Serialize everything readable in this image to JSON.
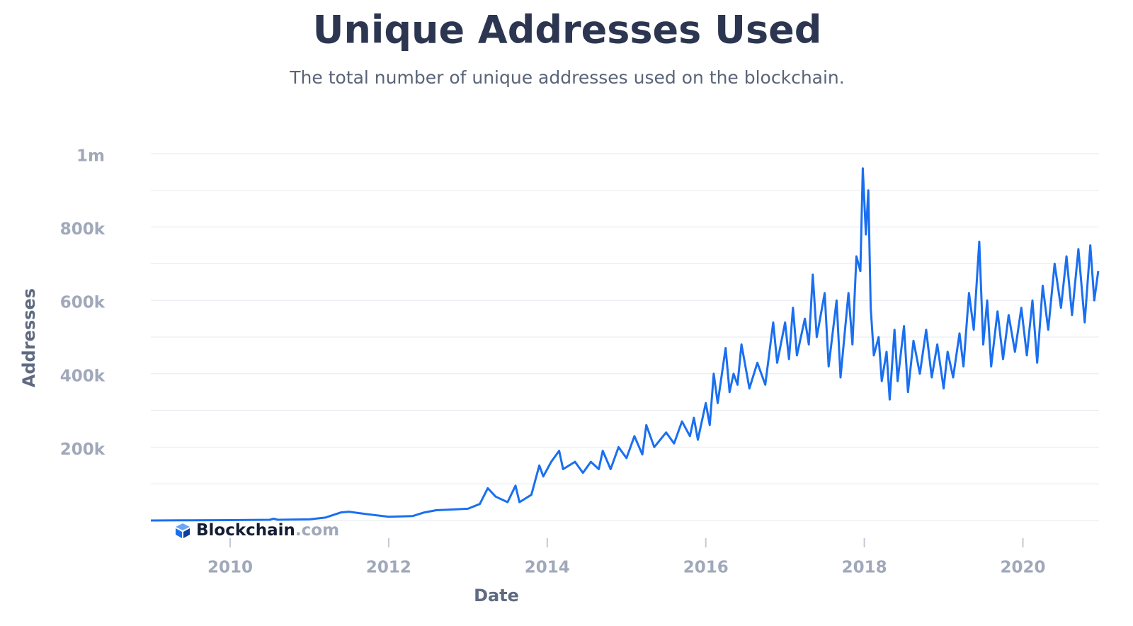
{
  "chart_data": {
    "type": "line",
    "title": "Unique Addresses Used",
    "subtitle": "The total number of unique addresses used on the blockchain.",
    "x_label": "Date",
    "y_label": "Addresses",
    "logo": "Blockchain",
    "logo_suffix": ".com",
    "xlim": [
      2009,
      2020.96
    ],
    "xticks": [
      2010,
      2012,
      2014,
      2016,
      2018,
      2020
    ],
    "ylim": [
      0,
      1000000
    ],
    "yticks": [
      {
        "value": 200000,
        "label": "200k"
      },
      {
        "value": 400000,
        "label": "400k"
      },
      {
        "value": 600000,
        "label": "600k"
      },
      {
        "value": 800000,
        "label": "800k"
      },
      {
        "value": 1000000,
        "label": "1m"
      }
    ],
    "ygrid": [
      0,
      100000,
      200000,
      300000,
      400000,
      500000,
      600000,
      700000,
      800000,
      900000,
      1000000
    ],
    "grid": true,
    "x": [
      2009.0,
      2009.5,
      2010.0,
      2010.5,
      2010.55,
      2010.6,
      2011.0,
      2011.2,
      2011.4,
      2011.5,
      2011.7,
      2012.0,
      2012.3,
      2012.45,
      2012.6,
      2012.8,
      2013.0,
      2013.15,
      2013.25,
      2013.35,
      2013.5,
      2013.6,
      2013.65,
      2013.8,
      2013.9,
      2013.95,
      2014.05,
      2014.15,
      2014.2,
      2014.35,
      2014.45,
      2014.55,
      2014.65,
      2014.7,
      2014.8,
      2014.9,
      2015.0,
      2015.1,
      2015.2,
      2015.25,
      2015.35,
      2015.5,
      2015.6,
      2015.7,
      2015.8,
      2015.85,
      2015.9,
      2016.0,
      2016.05,
      2016.1,
      2016.15,
      2016.25,
      2016.3,
      2016.35,
      2016.4,
      2016.45,
      2016.55,
      2016.65,
      2016.75,
      2016.85,
      2016.9,
      2017.0,
      2017.05,
      2017.1,
      2017.15,
      2017.25,
      2017.3,
      2017.35,
      2017.4,
      2017.5,
      2017.55,
      2017.65,
      2017.7,
      2017.8,
      2017.85,
      2017.9,
      2017.95,
      2017.98,
      2018.02,
      2018.05,
      2018.08,
      2018.12,
      2018.18,
      2018.22,
      2018.28,
      2018.32,
      2018.38,
      2018.42,
      2018.5,
      2018.55,
      2018.62,
      2018.7,
      2018.78,
      2018.85,
      2018.92,
      2019.0,
      2019.05,
      2019.12,
      2019.2,
      2019.25,
      2019.32,
      2019.38,
      2019.45,
      2019.5,
      2019.55,
      2019.6,
      2019.68,
      2019.75,
      2019.82,
      2019.9,
      2019.98,
      2020.05,
      2020.12,
      2020.18,
      2020.25,
      2020.32,
      2020.4,
      2020.48,
      2020.55,
      2020.62,
      2020.7,
      2020.78,
      2020.85,
      2020.9,
      2020.95
    ],
    "series": [
      {
        "name": "Addresses",
        "color": "#1a6ff0",
        "values": [
          0,
          500,
          1000,
          2000,
          5000,
          2000,
          3000,
          8000,
          22000,
          24000,
          18000,
          10000,
          12000,
          22000,
          28000,
          30000,
          32000,
          45000,
          88000,
          65000,
          50000,
          95000,
          50000,
          70000,
          150000,
          120000,
          160000,
          190000,
          140000,
          160000,
          130000,
          160000,
          140000,
          190000,
          140000,
          200000,
          170000,
          230000,
          180000,
          260000,
          200000,
          240000,
          210000,
          270000,
          230000,
          280000,
          220000,
          320000,
          260000,
          400000,
          320000,
          470000,
          350000,
          400000,
          370000,
          480000,
          360000,
          430000,
          370000,
          540000,
          430000,
          540000,
          440000,
          580000,
          450000,
          550000,
          480000,
          670000,
          500000,
          620000,
          420000,
          600000,
          390000,
          620000,
          480000,
          720000,
          680000,
          960000,
          780000,
          900000,
          580000,
          450000,
          500000,
          380000,
          460000,
          330000,
          520000,
          380000,
          530000,
          350000,
          490000,
          400000,
          520000,
          390000,
          480000,
          360000,
          460000,
          390000,
          510000,
          420000,
          620000,
          520000,
          760000,
          480000,
          600000,
          420000,
          570000,
          440000,
          560000,
          460000,
          580000,
          450000,
          600000,
          430000,
          640000,
          520000,
          700000,
          580000,
          720000,
          560000,
          740000,
          540000,
          750000,
          600000,
          680000
        ]
      }
    ]
  }
}
